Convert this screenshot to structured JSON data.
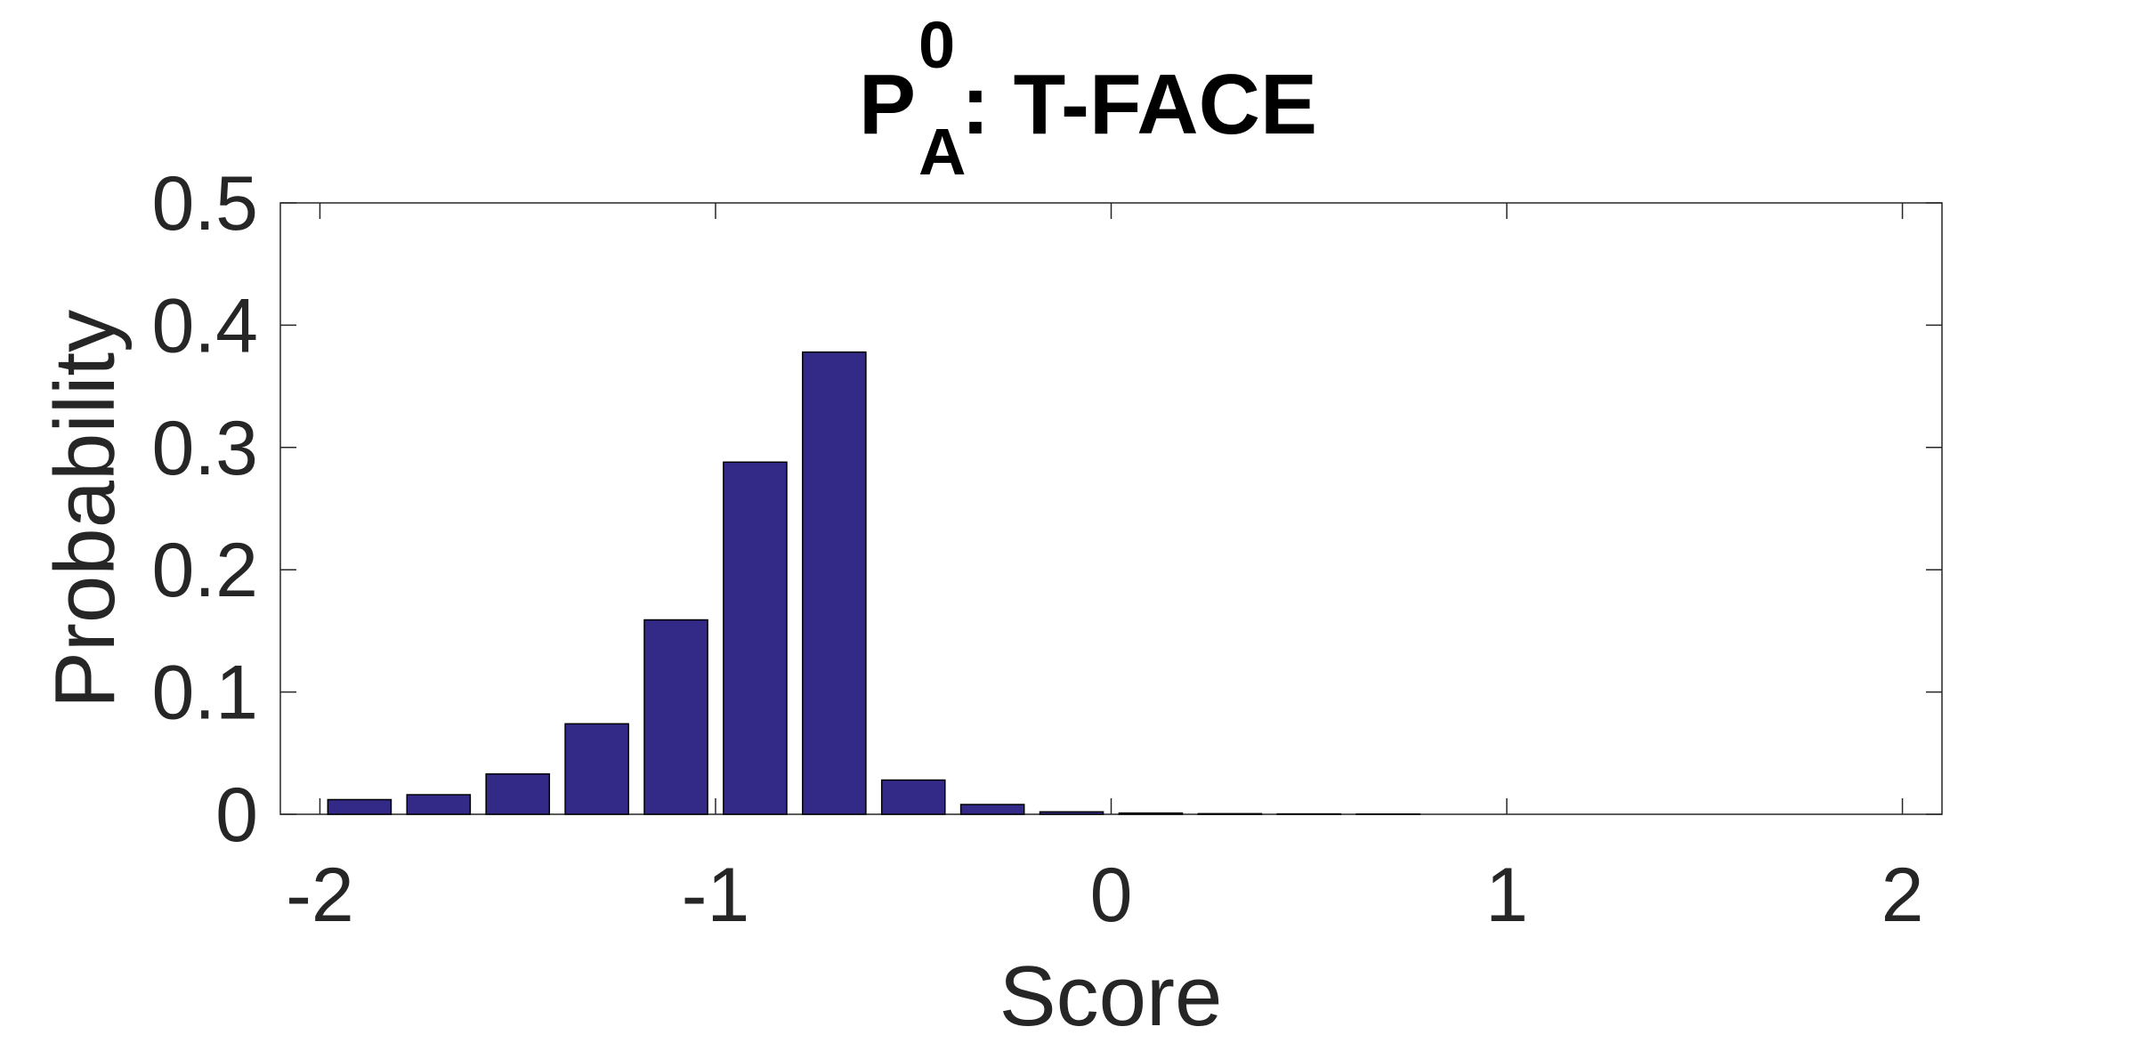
{
  "chart_data": {
    "type": "bar",
    "title": {
      "main": "P",
      "superscript": "0",
      "subscript": "A",
      "rest": ": T-FACE"
    },
    "xlabel": "Score",
    "ylabel": "Probability",
    "xlim": [
      -2.1,
      2.1
    ],
    "ylim": [
      0,
      0.5
    ],
    "xticks": [
      -2,
      -1,
      0,
      1,
      2
    ],
    "xtick_labels": [
      "-2",
      "-1",
      "0",
      "1",
      "2"
    ],
    "yticks": [
      0,
      0.1,
      0.2,
      0.3,
      0.4,
      0.5
    ],
    "ytick_labels": [
      "0",
      "0.1",
      "0.2",
      "0.3",
      "0.4",
      "0.5"
    ],
    "bin_width": 0.2,
    "x": [
      -1.9,
      -1.7,
      -1.5,
      -1.3,
      -1.1,
      -0.9,
      -0.7,
      -0.5,
      -0.3,
      -0.1,
      0.1,
      0.3,
      0.5,
      0.7
    ],
    "values": [
      0.012,
      0.016,
      0.033,
      0.074,
      0.159,
      0.288,
      0.378,
      0.028,
      0.008,
      0.002,
      0.001,
      0.0005,
      0.0003,
      0.0002
    ],
    "bar_color": "#332a87",
    "grid": false
  }
}
